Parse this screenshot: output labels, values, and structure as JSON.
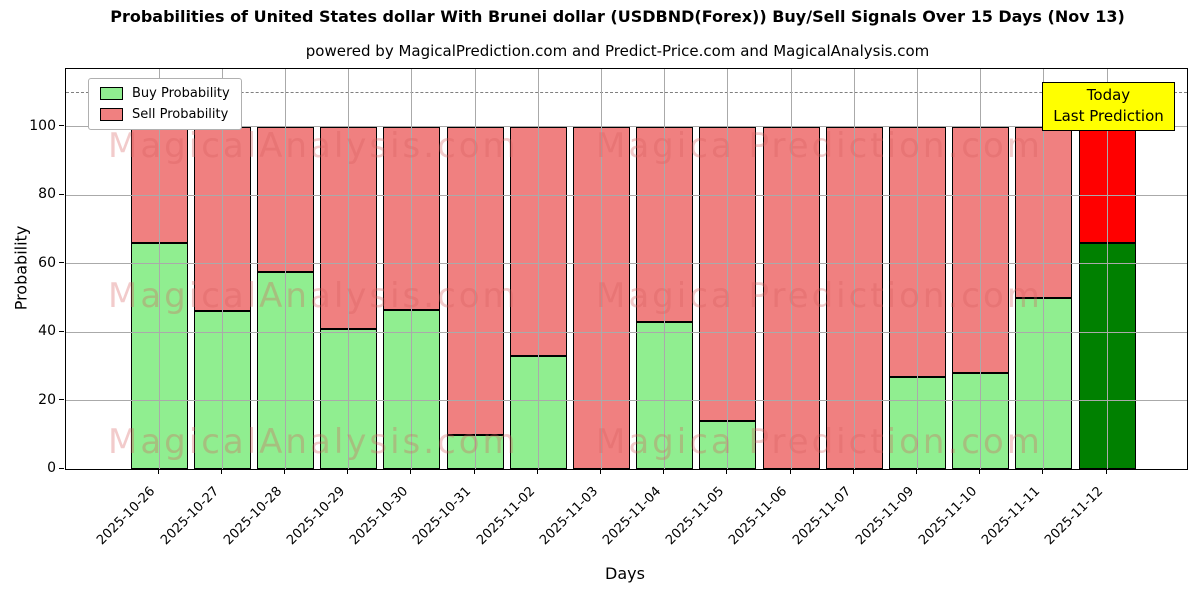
{
  "watermarks": {
    "left": "MagicalAnalysis.com",
    "right": "Magica Prediction.com"
  },
  "annotation": {
    "line1": "Today",
    "line2": "Last Prediction",
    "bg_color": "#ffff00"
  },
  "chart_data": {
    "type": "bar",
    "stacked": true,
    "title": "Probabilities of United States dollar With Brunei dollar (USDBND(Forex)) Buy/Sell Signals Over 15 Days (Nov 13)",
    "subtitle": "powered by MagicalPrediction.com and Predict-Price.com and MagicalAnalysis.com",
    "xlabel": "Days",
    "ylabel": "Probability",
    "categories": [
      "2025-10-26",
      "2025-10-27",
      "2025-10-28",
      "2025-10-29",
      "2025-10-30",
      "2025-10-31",
      "2025-11-02",
      "2025-11-03",
      "2025-11-04",
      "2025-11-05",
      "2025-11-06",
      "2025-11-07",
      "2025-11-09",
      "2025-11-10",
      "2025-11-11",
      "2025-11-12"
    ],
    "series": [
      {
        "name": "Buy Probability",
        "color": "#90ee90",
        "last_bar_color": "#008000",
        "values": [
          66,
          46,
          57.5,
          41,
          46.5,
          10,
          33,
          0,
          43,
          14,
          0,
          0,
          27,
          28,
          50,
          66
        ]
      },
      {
        "name": "Sell Probability",
        "color": "#f08080",
        "last_bar_color": "#ff0000",
        "values": [
          34,
          54,
          42.5,
          59,
          53.5,
          90,
          67,
          100,
          57,
          86,
          100,
          100,
          73,
          72,
          50,
          34
        ]
      }
    ],
    "bar_total": 100,
    "yticks": [
      0,
      20,
      40,
      60,
      80,
      100
    ],
    "ylim": [
      0,
      116.8
    ],
    "dashed_line_y": 110,
    "grid": true,
    "legend_position": "upper left",
    "edge_color": "#000000",
    "grid_color": "#aaaaaa",
    "dashed_line_color": "#7f7f7f"
  }
}
